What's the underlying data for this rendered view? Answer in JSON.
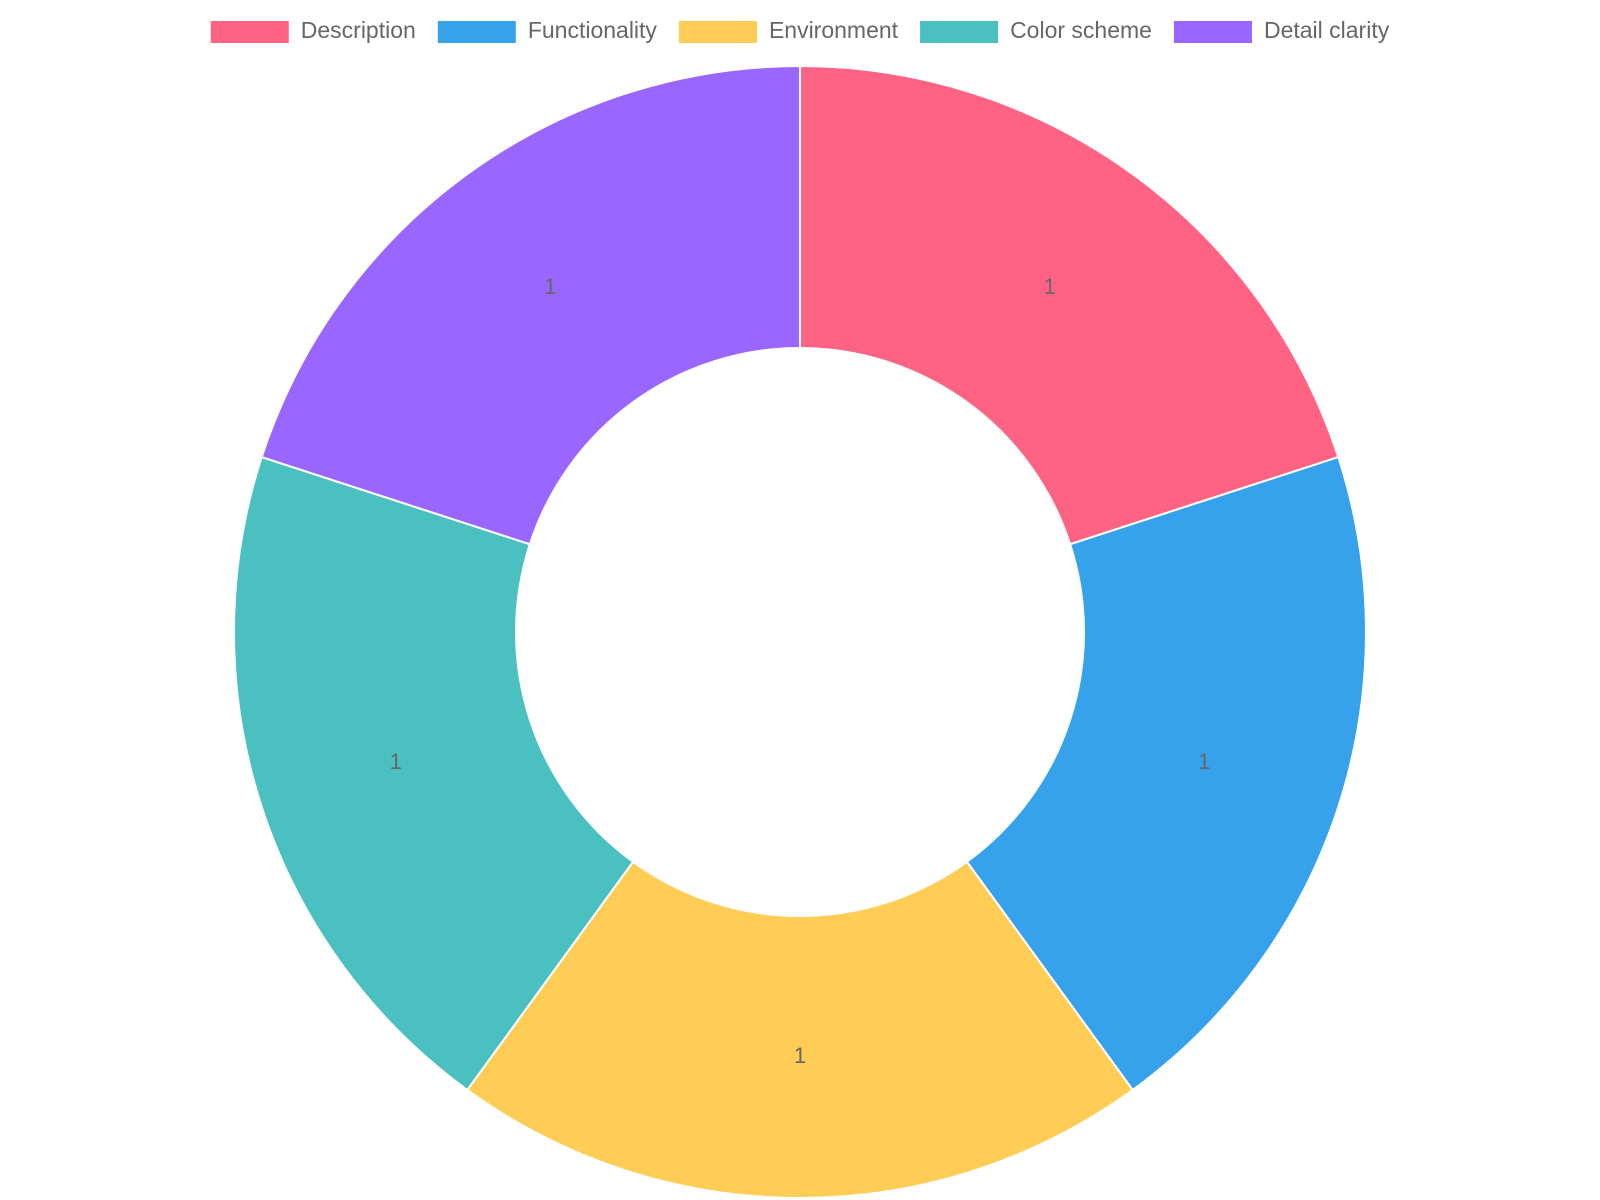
{
  "chart_data": {
    "type": "doughnut",
    "categories": [
      "Description",
      "Functionality",
      "Environment",
      "Color scheme",
      "Detail clarity"
    ],
    "values": [
      1,
      1,
      1,
      1,
      1
    ],
    "colors": [
      "#ff6384",
      "#36a2eb",
      "#ffcd56",
      "#4bc0c0",
      "#9966ff"
    ],
    "legend": "top"
  }
}
